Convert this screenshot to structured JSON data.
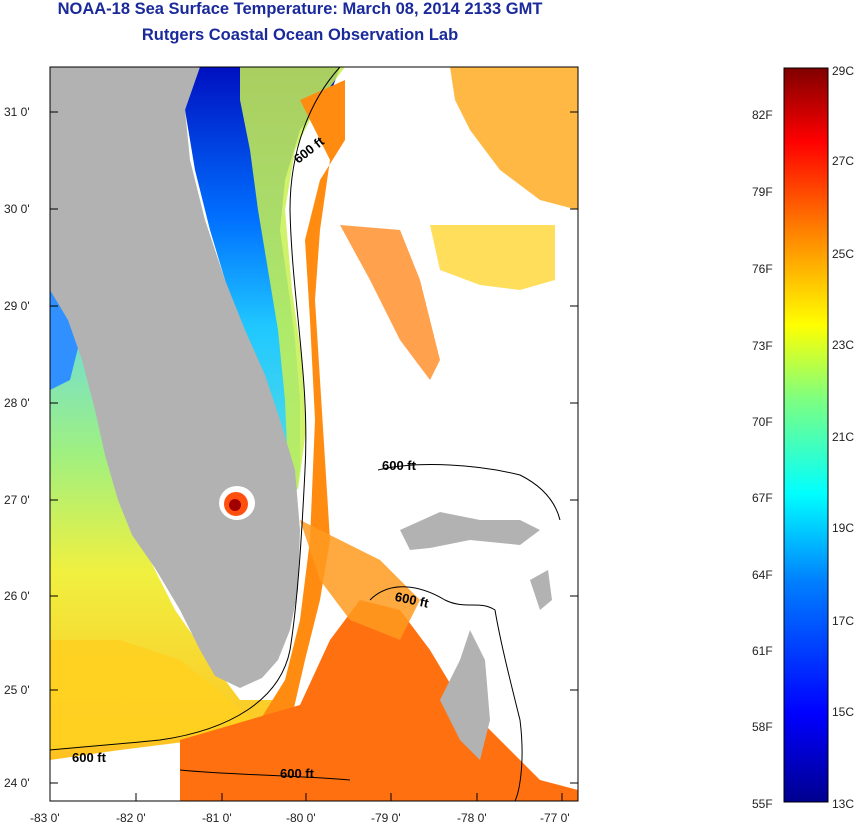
{
  "title": "NOAA-18 Sea Surface Temperature:  March 08, 2014 2133 GMT",
  "subtitle": "Rutgers Coastal Ocean Observation Lab",
  "map": {
    "lat_labels": [
      "31 0'",
      "30 0'",
      "29 0'",
      "28 0'",
      "27 0'",
      "26 0'",
      "25 0'",
      "24 0'"
    ],
    "lon_labels": [
      "-83 0'",
      "-82 0'",
      "-81 0'",
      "-80 0'",
      "-79 0'",
      "-78 0'",
      "-77 0'"
    ],
    "isobath_labels": [
      "600 ft",
      "600 ft",
      "600 ft",
      "600 ft",
      "600 ft"
    ],
    "land_color": "#b2b2b2",
    "no_data_color": "#ffffff"
  },
  "colorbar": {
    "celsius_labels": [
      "29C",
      "27C",
      "25C",
      "23C",
      "21C",
      "19C",
      "17C",
      "15C",
      "13C"
    ],
    "fahrenheit_labels": [
      "82F",
      "79F",
      "76F",
      "73F",
      "70F",
      "67F",
      "64F",
      "61F",
      "58F",
      "55F"
    ],
    "range_c": [
      13,
      29
    ],
    "colors": [
      "#00008f",
      "#0000ff",
      "#007fff",
      "#00ffff",
      "#7fff7f",
      "#ffff00",
      "#ff7f00",
      "#ff0000",
      "#800000"
    ]
  }
}
